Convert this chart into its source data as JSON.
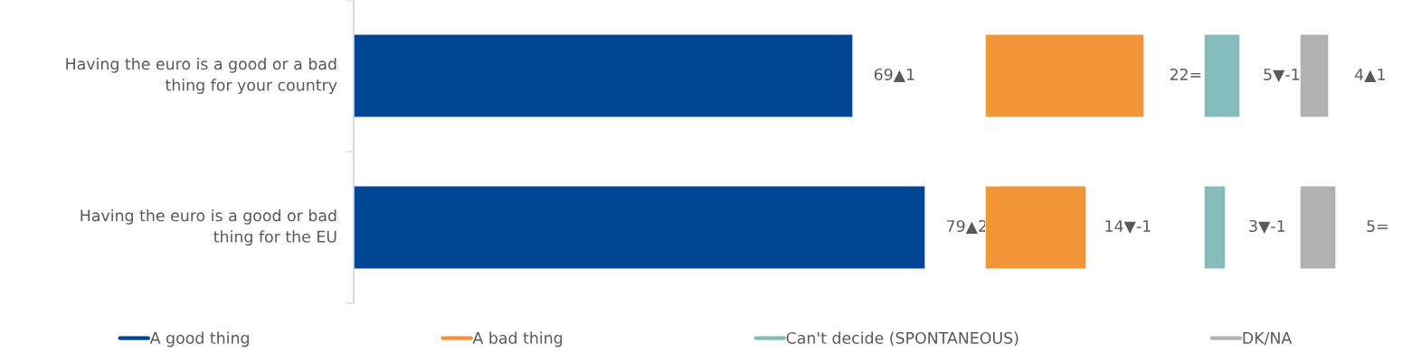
{
  "chart_data": [
    {
      "type": "bar",
      "orientation": "horizontal",
      "tick_labels": "y",
      "legend": "bottom",
      "categories": [
        "Having the euro is a good or a bad thing for your country",
        "Having the euro is a good or bad thing for the EU"
      ],
      "series": [
        {
          "name": "A good thing",
          "color": "#004494",
          "values": [
            69,
            79
          ],
          "value_labels": [
            "69▲1",
            "79▲2"
          ]
        }
      ]
    },
    {
      "type": "bar",
      "orientation": "horizontal",
      "tick_labels": false,
      "legend": "bottom",
      "categories": [
        null,
        null
      ],
      "series": [
        {
          "name": "A bad thing",
          "color": "#f29539",
          "values": [
            22,
            14
          ],
          "value_labels": [
            "22=",
            "14▼-1"
          ]
        }
      ]
    },
    {
      "type": "bar",
      "orientation": "horizontal",
      "tick_labels": false,
      "legend": "bottom",
      "categories": [
        null,
        null
      ],
      "series": [
        {
          "name": "Can't decide (SPONTANEOUS)",
          "color": "#85bcbb",
          "values": [
            5,
            3
          ],
          "value_labels": [
            "5▼-1",
            "3▼-1"
          ]
        }
      ]
    },
    {
      "type": "bar",
      "orientation": "horizontal",
      "tick_labels": false,
      "legend": "bottom",
      "categories": [
        null,
        null
      ],
      "series": [
        {
          "name": "DK/NA",
          "color": "#b1b1b1",
          "values": [
            4,
            5
          ],
          "value_labels": [
            "4▲1",
            "5="
          ]
        }
      ]
    }
  ]
}
